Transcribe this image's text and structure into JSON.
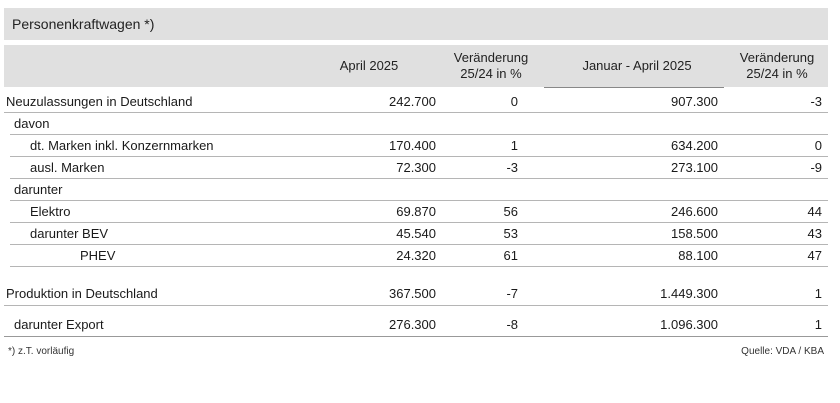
{
  "title": "Personenkraftwagen *)",
  "headers": {
    "col1": "April 2025",
    "col2_line1": "Veränderung",
    "col2_line2": "25/24 in %",
    "col3": "Januar - April 2025",
    "col4_line1": "Veränderung",
    "col4_line2": "25/24 in %"
  },
  "rows": [
    {
      "label": "Neuzulassungen in Deutschland",
      "apr": "242.700",
      "chg1": "0",
      "ytd": "907.300",
      "chg2": "-3"
    },
    {
      "label": "davon",
      "apr": "",
      "chg1": "",
      "ytd": "",
      "chg2": ""
    },
    {
      "label": "dt. Marken inkl. Konzernmarken",
      "apr": "170.400",
      "chg1": "1",
      "ytd": "634.200",
      "chg2": "0"
    },
    {
      "label": "ausl. Marken",
      "apr": "72.300",
      "chg1": "-3",
      "ytd": "273.100",
      "chg2": "-9"
    },
    {
      "label": "darunter",
      "apr": "",
      "chg1": "",
      "ytd": "",
      "chg2": ""
    },
    {
      "label": "Elektro",
      "apr": "69.870",
      "chg1": "56",
      "ytd": "246.600",
      "chg2": "44"
    },
    {
      "label": "darunter BEV",
      "apr": "45.540",
      "chg1": "53",
      "ytd": "158.500",
      "chg2": "43"
    },
    {
      "label": "PHEV",
      "apr": "24.320",
      "chg1": "61",
      "ytd": "88.100",
      "chg2": "47"
    },
    {
      "label": "Produktion in Deutschland",
      "apr": "367.500",
      "chg1": "-7",
      "ytd": "1.449.300",
      "chg2": "1"
    },
    {
      "label": "darunter Export",
      "apr": "276.300",
      "chg1": "-8",
      "ytd": "1.096.300",
      "chg2": "1"
    }
  ],
  "footnote": "*) z.T. vorläufig",
  "source": "Quelle: VDA / KBA"
}
